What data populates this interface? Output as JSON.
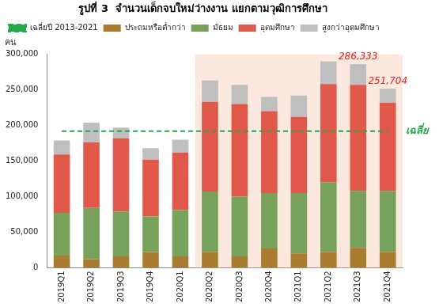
{
  "chart_data": {
    "type": "bar",
    "title": "รูปที่ 3  จำนวนเด็กจบใหม่ว่างงาน แยกตามวุฒิการศึกษา",
    "y_label": "คน",
    "categories": [
      "2019Q1",
      "2019Q2",
      "2019Q3",
      "2019Q4",
      "2020Q1",
      "2020Q2",
      "2020Q3",
      "2020Q4",
      "2021Q1",
      "2021Q2",
      "2021Q3",
      "2021Q4"
    ],
    "series": [
      {
        "name": "ประถมหรือต่ำกว่า",
        "color": "#a97c2f",
        "values": [
          17000,
          12000,
          16000,
          22000,
          16000,
          22000,
          16000,
          27000,
          20000,
          22000,
          28000,
          22000
        ]
      },
      {
        "name": "มัธยม",
        "color": "#78a25c",
        "values": [
          60000,
          72000,
          63000,
          50000,
          65000,
          85000,
          84000,
          78000,
          85000,
          98000,
          80000,
          86000
        ]
      },
      {
        "name": "อุดมศึกษา",
        "color": "#e0584a",
        "values": [
          82000,
          92000,
          103000,
          80000,
          81000,
          126000,
          130000,
          115000,
          107000,
          138000,
          149000,
          124000
        ]
      },
      {
        "name": "สูงกว่าอุดมศึกษา",
        "color": "#bfbfbf",
        "values": [
          20000,
          28000,
          15000,
          16000,
          18000,
          30000,
          27000,
          20000,
          30000,
          32000,
          29333,
          19704
        ]
      },
      {
        "name": "เฉลี่ยปี 2013-2021",
        "color": "#27a84a",
        "type": "line",
        "line_style": "dashed",
        "values": [
          192000,
          192000,
          192000,
          192000,
          192000,
          192000,
          192000,
          192000,
          192000,
          192000,
          192000,
          192000
        ]
      }
    ],
    "annotations": [
      {
        "text": "286,333",
        "category": "2021Q3",
        "value": 286333,
        "color": "#e0241b"
      },
      {
        "text": "251,704",
        "category": "2021Q4",
        "value": 251704,
        "color": "#e0241b"
      },
      {
        "text": "เฉลี่ย",
        "value": 192000,
        "color": "#27a84a"
      }
    ],
    "stacked": true,
    "ylim": [
      0,
      300000
    ],
    "yticks": [
      0,
      {
        "value": 50000,
        "label": "50,000"
      },
      {
        "value": 100000,
        "label": "100,000"
      },
      {
        "value": 150000,
        "label": "150,000"
      },
      {
        "value": 200000,
        "label": "200,000"
      },
      {
        "value": 250000,
        "label": "250,000"
      },
      {
        "value": 300000,
        "label": "300,000"
      }
    ],
    "grid": false,
    "legend": "top-left"
  }
}
